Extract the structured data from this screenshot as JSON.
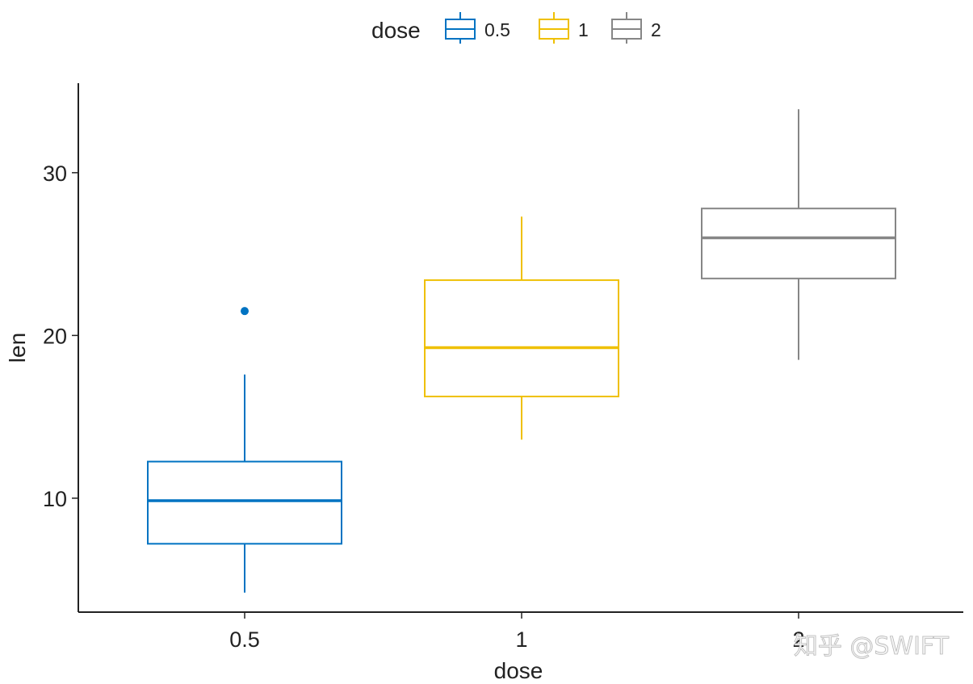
{
  "chart_data": {
    "type": "box",
    "xlabel": "dose",
    "ylabel": "len",
    "categories": [
      "0.5",
      "1",
      "2"
    ],
    "ylim": [
      3,
      35.5
    ],
    "yticks": [
      10,
      20,
      30
    ],
    "grid": false,
    "legend": {
      "title": "dose",
      "position": "top",
      "entries": [
        "0.5",
        "1",
        "2"
      ]
    },
    "colors": [
      "#0073C2",
      "#EFC000",
      "#868686"
    ],
    "boxes": [
      {
        "category": "0.5",
        "whisker_low": 4.2,
        "q1": 7.2,
        "median": 9.85,
        "q3": 12.25,
        "whisker_high": 17.6,
        "outliers": [
          21.5
        ]
      },
      {
        "category": "1",
        "whisker_low": 13.6,
        "q1": 16.25,
        "median": 19.25,
        "q3": 23.4,
        "whisker_high": 27.3,
        "outliers": []
      },
      {
        "category": "2",
        "whisker_low": 18.5,
        "q1": 23.5,
        "median": 26.0,
        "q3": 27.8,
        "whisker_high": 33.9,
        "outliers": []
      }
    ]
  },
  "watermark": "知乎 @SWIFT"
}
